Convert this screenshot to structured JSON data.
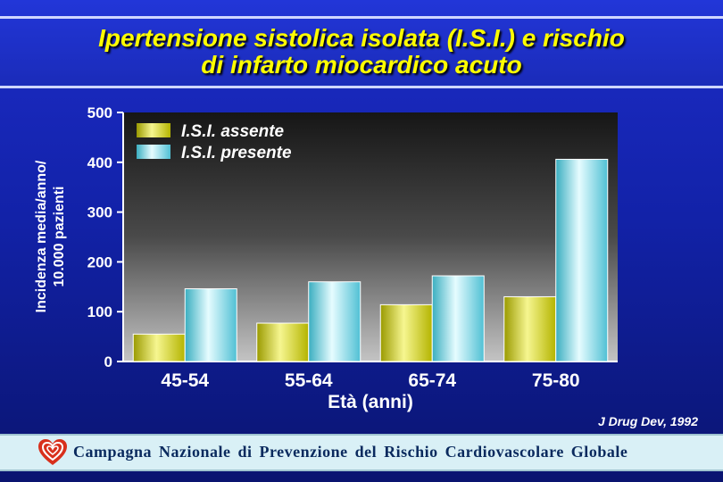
{
  "title_line1": "Ipertensione sistolica isolata (I.S.I.) e rischio",
  "title_line2": "di infarto miocardico acuto",
  "source": "J Drug Dev, 1992",
  "footer_text": "Campagna Nazionale di Prevenzione del Rischio Cardiovascolare Globale",
  "logo_icon": "heart-logo-icon",
  "chart_data": {
    "type": "bar",
    "categories": [
      "45-54",
      "55-64",
      "65-74",
      "75-80"
    ],
    "series": [
      {
        "name": "I.S.I. assente",
        "values": [
          55,
          77,
          114,
          130
        ]
      },
      {
        "name": "I.S.I. presente",
        "values": [
          146,
          160,
          172,
          406
        ]
      }
    ],
    "xlabel": "Età (anni)",
    "ylabel_line1": "Incidenza media/anno/",
    "ylabel_line2": "10.000 pazienti",
    "ylim": [
      0,
      500
    ],
    "yticks": [
      0,
      100,
      200,
      300,
      400,
      500
    ],
    "legend_position": "top-left",
    "grid": false,
    "colors": {
      "assente": "#d8d81a",
      "presente": "#6fd8e8"
    }
  }
}
